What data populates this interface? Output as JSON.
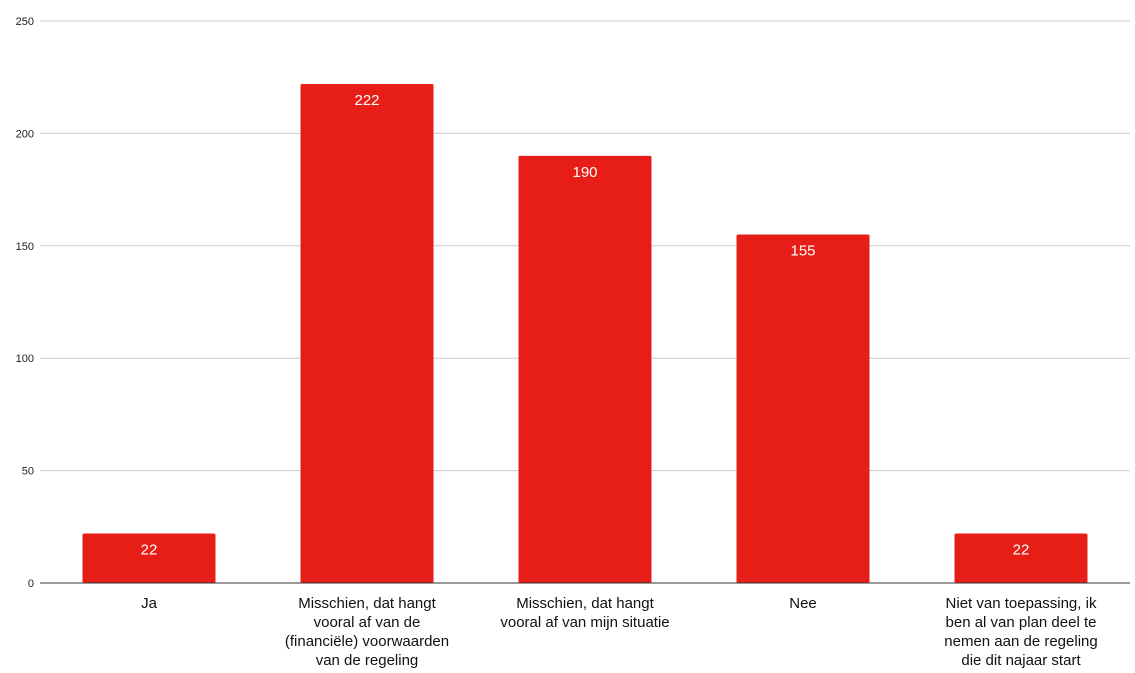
{
  "chart_data": {
    "type": "bar",
    "categories": [
      [
        "Ja"
      ],
      [
        "Misschien, dat hangt",
        "vooral af van de",
        "(financiële) voorwaarden",
        "van de regeling"
      ],
      [
        "Misschien, dat hangt",
        "vooral af van mijn situatie"
      ],
      [
        "Nee"
      ],
      [
        "Niet van toepassing, ik",
        "ben al van plan deel te",
        "nemen aan de regeling",
        "die dit najaar start"
      ]
    ],
    "values": [
      22,
      222,
      190,
      155,
      22
    ],
    "data_labels": [
      "22",
      "222",
      "190",
      "155",
      "22"
    ],
    "yticks": [
      "0",
      "50",
      "100",
      "150",
      "200",
      "250"
    ],
    "ylim": [
      0,
      250
    ],
    "grid": true,
    "legend": "none",
    "bar_color": "#e61e17",
    "grid_color": "#cccccc",
    "axis_color": "#333333"
  }
}
